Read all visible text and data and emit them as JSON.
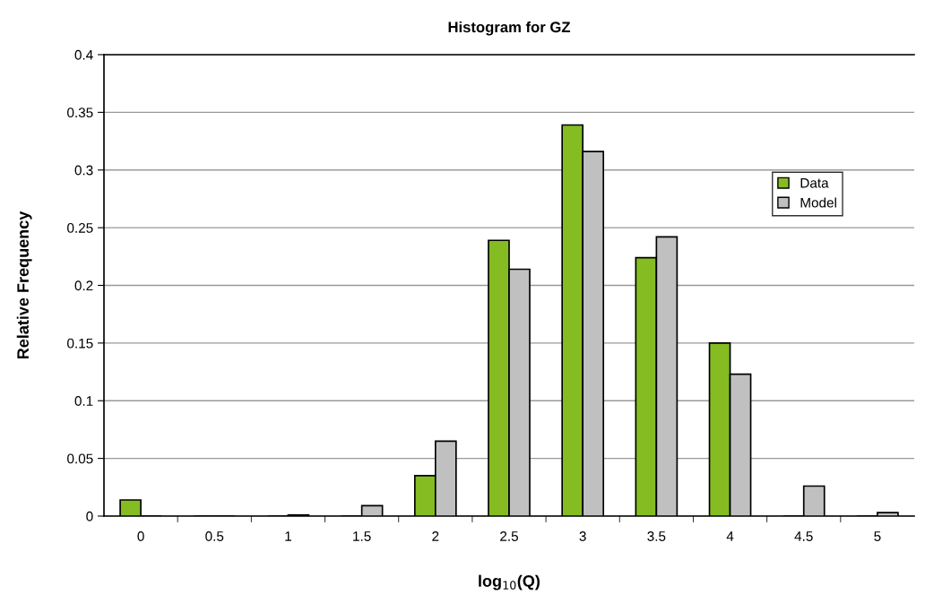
{
  "chart_data": {
    "type": "bar",
    "title": "Histogram for GZ",
    "xlabel": "log$_{10}$(Q)",
    "ylabel": "Relative Frequency",
    "categories": [
      "0",
      "0.5",
      "1",
      "1.5",
      "2",
      "2.5",
      "3",
      "3.5",
      "4",
      "4.5",
      "5"
    ],
    "series": [
      {
        "name": "Data",
        "color": "#84bc22",
        "values": [
          0.014,
          0,
          0,
          0,
          0.035,
          0.239,
          0.339,
          0.224,
          0.15,
          0,
          0
        ]
      },
      {
        "name": "Model",
        "color": "#c0c0c0",
        "values": [
          0,
          0,
          0.001,
          0.009,
          0.065,
          0.214,
          0.316,
          0.242,
          0.123,
          0.026,
          0.003
        ]
      }
    ],
    "ylim": [
      0,
      0.4
    ],
    "yticks": [
      0,
      0.05,
      0.1,
      0.15,
      0.2,
      0.25,
      0.3,
      0.35,
      0.4
    ],
    "grid": "y",
    "legend": "top right"
  }
}
